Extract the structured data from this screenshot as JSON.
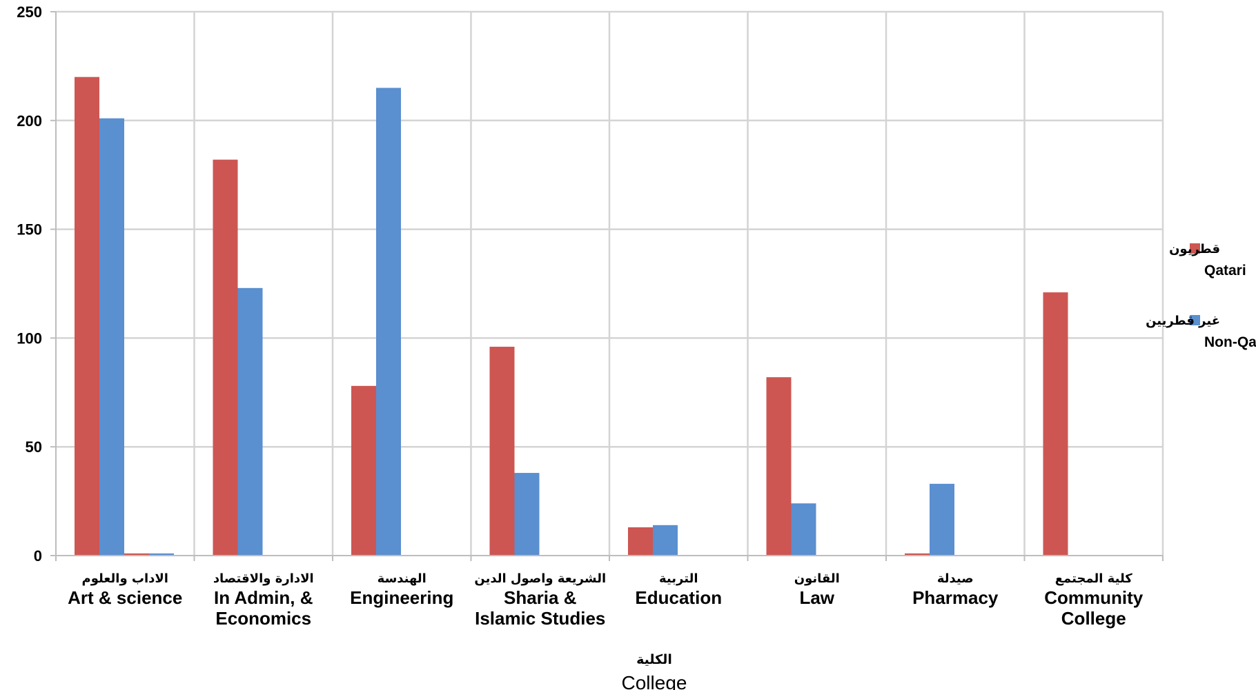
{
  "chart_data": {
    "type": "bar",
    "title": "",
    "xlabel_ar": "الكلية",
    "xlabel": "College",
    "ylabel": "",
    "ylim": [
      0,
      250
    ],
    "yticks": [
      0,
      50,
      100,
      150,
      200,
      250
    ],
    "grid": true,
    "legend_position": "right",
    "categories": [
      {
        "ar": "الاداب والعلوم",
        "en": [
          "Art & science"
        ]
      },
      {
        "ar": "الادارة والاقتصاد",
        "en": [
          "In Admin, &",
          "Economics"
        ]
      },
      {
        "ar": "الهندسة",
        "en": [
          "Engineering"
        ]
      },
      {
        "ar": "الشريعة واصول الدين",
        "en": [
          "Sharia &",
          "Islamic Studies"
        ]
      },
      {
        "ar": "التربية",
        "en": [
          "Education"
        ]
      },
      {
        "ar": "القانون",
        "en": [
          "Law"
        ]
      },
      {
        "ar": "صيدلة",
        "en": [
          "Pharmacy"
        ]
      },
      {
        "ar": "كلية المجتمع",
        "en": [
          "Community",
          "College"
        ]
      }
    ],
    "series": [
      {
        "name": "Qatari",
        "name_ar": "قطريون",
        "color": "#cd5652",
        "values": [
          220,
          182,
          78,
          96,
          13,
          82,
          1,
          121
        ]
      },
      {
        "name": "Non-Qatari",
        "name_ar": "غير قطريين",
        "color": "#5a8fd0",
        "values": [
          201,
          123,
          215,
          38,
          14,
          24,
          33,
          0
        ]
      },
      {
        "name": "",
        "color": "#cd5652",
        "values": [
          1,
          0,
          0,
          0,
          0,
          0,
          0,
          0
        ]
      },
      {
        "name": "",
        "color": "#5a8fd0",
        "values": [
          1,
          0,
          0,
          0,
          0,
          0,
          0,
          0
        ]
      }
    ]
  }
}
